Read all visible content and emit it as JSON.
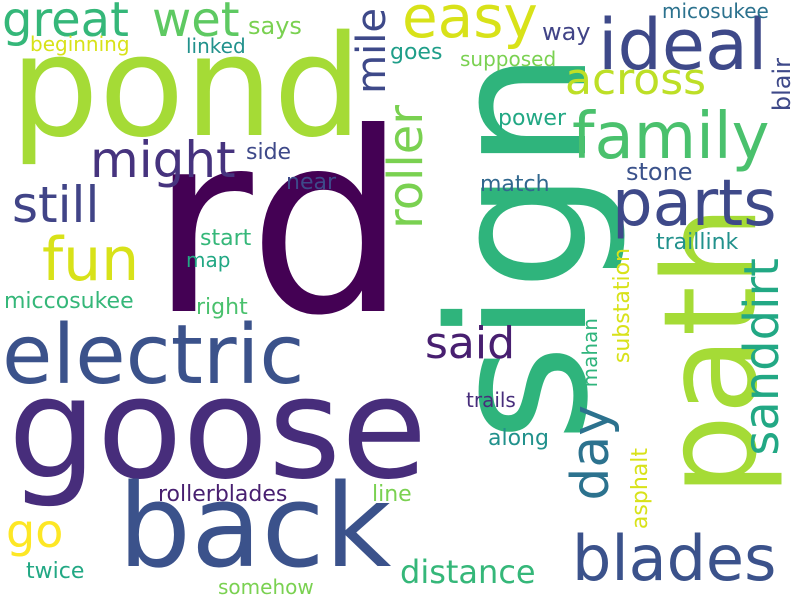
{
  "words": {
    "rd": "rd",
    "sign": "sign",
    "goose": "goose",
    "pond": "pond",
    "back": "back",
    "path": "path",
    "electric": "electric",
    "ideal": "ideal",
    "family": "family",
    "parts": "parts",
    "blades": "blades",
    "easy": "easy",
    "wet": "wet",
    "great": "great",
    "might": "might",
    "still": "still",
    "fun": "fun",
    "across": "across",
    "roller": "roller",
    "sanddirt": "sanddirt",
    "day": "day",
    "said": "said",
    "mile": "mile",
    "go": "go",
    "distance": "distance",
    "says": "says",
    "linked": "linked",
    "beginning": "beginning",
    "goes": "goes",
    "way": "way",
    "supposed": "supposed",
    "micosukee": "micosukee",
    "blair": "blair",
    "power": "power",
    "side": "side",
    "near": "near",
    "match": "match",
    "stone": "stone",
    "start": "start",
    "map": "map",
    "traillink": "traillink",
    "miccosukee": "miccosukee",
    "right": "right",
    "substation": "substation",
    "mahan": "mahan",
    "trails": "trails",
    "along": "along",
    "rollerblades": "rollerblades",
    "line": "line",
    "asphalt": "asphalt",
    "twice": "twice",
    "somehow": "somehow"
  },
  "colors": {
    "background": "#ffffff"
  }
}
